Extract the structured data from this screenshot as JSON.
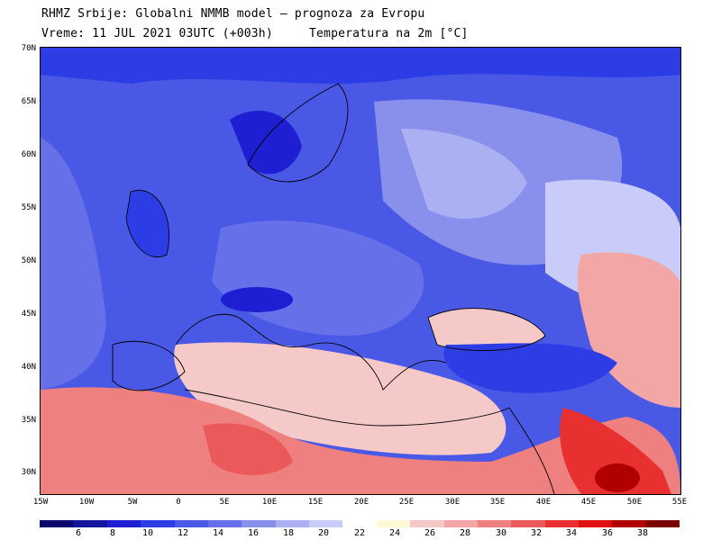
{
  "title": {
    "line1": "RHMZ Srbije: Globalni NMMB model — prognoza za Evropu",
    "line2": "Vreme: 11 JUL 2021 03UTC (+003h)     Temperatura na 2m [°C]"
  },
  "map": {
    "latitude_labels": [
      "70N",
      "65N",
      "60N",
      "55N",
      "50N",
      "45N",
      "40N",
      "35N",
      "30N"
    ],
    "longitude_labels": [
      "15W",
      "10W",
      "5W",
      "0",
      "5E",
      "10E",
      "15E",
      "20E",
      "25E",
      "30E",
      "35E",
      "40E",
      "45E",
      "50E",
      "55E"
    ],
    "lat_range": [
      28,
      70
    ],
    "lon_range": [
      -15,
      55
    ]
  },
  "colorbar": {
    "colors": [
      "#0a0a6e",
      "#14149f",
      "#1e1ed2",
      "#2d3de6",
      "#4a58e6",
      "#6670e8",
      "#8890ec",
      "#aab0f2",
      "#c9ccf8",
      "#ffffff",
      "#fff7d6",
      "#f6c9c9",
      "#f2a6a6",
      "#ee8080",
      "#ea5a5a",
      "#e83030",
      "#e01010",
      "#b00000",
      "#7a0000"
    ],
    "labels": [
      "6",
      "8",
      "10",
      "12",
      "14",
      "16",
      "18",
      "20",
      "22",
      "24",
      "26",
      "28",
      "30",
      "32",
      "34",
      "36",
      "38"
    ]
  }
}
